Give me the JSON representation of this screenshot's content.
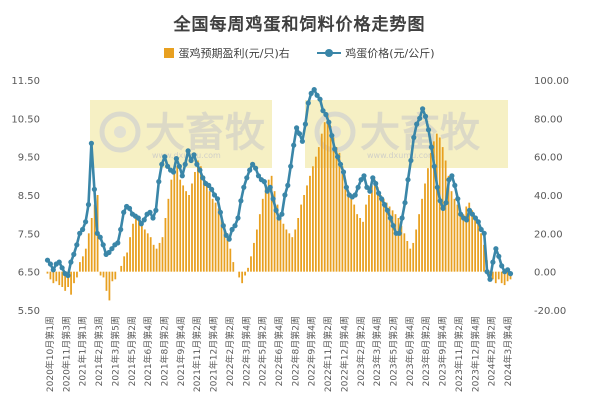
{
  "colors": {
    "bar": "#E8A020",
    "line": "#3A86A8",
    "lineDark": "#2E6D8E",
    "watermark_bg": "#F6F0C4"
  },
  "watermark": {
    "text": "大畜牧",
    "url": "www.dxumu.com"
  },
  "chart_data": {
    "type": "bar+line",
    "title": "全国每周鸡蛋和饲料价格走势图",
    "legend_position": "top",
    "grid": false,
    "y_left": {
      "label": "",
      "ticks": [
        "11.50",
        "10.50",
        "9.50",
        "8.50",
        "7.50",
        "6.50",
        "5.50"
      ],
      "range": [
        5.5,
        11.5
      ]
    },
    "y_right": {
      "label": "",
      "ticks": [
        "100.00",
        "80.00",
        "60.00",
        "40.00",
        "20.00",
        "0.00",
        "-20.00"
      ],
      "range": [
        -20,
        100
      ]
    },
    "x_tick_labels": [
      "2020年10月第1周",
      "2020年11月第3周",
      "2021年1月第1周",
      "2021年2月第3周",
      "2021年3月第5周",
      "2021年5月第2周",
      "2021年6月第4周",
      "2021年8月第2周",
      "2021年9月第4周",
      "2021年11月第2周",
      "2021年12月第4周",
      "2022年2月第2周",
      "2022年3月第4周",
      "2022年5月第2周",
      "2022年6月第4周",
      "2022年8月第2周",
      "2022年9月第4周",
      "2022年11月第2周",
      "2022年12月第4周",
      "2023年2月第2周",
      "2023年3月第4周",
      "2023年5月第2周",
      "2023年6月第4周",
      "2023年8月第2周",
      "2023年9月第4周",
      "2023年11月第2周",
      "2023年12月第4周",
      "2024年2月第2周",
      "2024年3月第4周"
    ],
    "series": [
      {
        "name": "蛋鸡预期盈利(元/只)右",
        "type": "bar",
        "axis": "right",
        "values": [
          -1,
          -4,
          -6,
          -5,
          -7,
          -8,
          -10,
          -8,
          -12,
          -6,
          -3,
          5,
          8,
          12,
          20,
          28,
          35,
          40,
          -2,
          -3,
          -10,
          -15,
          -5,
          -4,
          0,
          3,
          8,
          10,
          18,
          25,
          28,
          29,
          25,
          22,
          20,
          18,
          14,
          12,
          15,
          18,
          28,
          38,
          48,
          52,
          55,
          48,
          45,
          42,
          40,
          46,
          52,
          58,
          55,
          50,
          45,
          42,
          38,
          36,
          33,
          28,
          25,
          20,
          12,
          5,
          0,
          -3,
          -6,
          -2,
          2,
          8,
          15,
          22,
          30,
          38,
          45,
          48,
          50,
          42,
          35,
          30,
          25,
          22,
          20,
          18,
          22,
          28,
          35,
          40,
          45,
          50,
          55,
          60,
          65,
          72,
          78,
          82,
          76,
          70,
          65,
          62,
          55,
          48,
          42,
          38,
          35,
          30,
          28,
          26,
          35,
          40,
          45,
          48,
          44,
          40,
          38,
          36,
          34,
          32,
          30,
          28,
          24,
          20,
          16,
          12,
          15,
          22,
          30,
          38,
          46,
          54,
          62,
          68,
          72,
          70,
          65,
          58,
          50,
          42,
          38,
          35,
          32,
          30,
          34,
          36,
          32,
          28,
          25,
          20,
          14,
          6,
          -2,
          -4,
          -6,
          -4,
          -6,
          -7,
          -5,
          -4
        ],
        "note": "bar values in right-axis units (元/只)"
      },
      {
        "name": "鸡蛋价格(元/公斤)",
        "type": "line",
        "axis": "right",
        "values": [
          6,
          4,
          1,
          4,
          5,
          2,
          -1,
          -2,
          5,
          9,
          14,
          20,
          22,
          26,
          35,
          67,
          43,
          20,
          18,
          14,
          9,
          10,
          12,
          14,
          15,
          22,
          31,
          34,
          33,
          30,
          29,
          28,
          25,
          27,
          30,
          31,
          28,
          32,
          47,
          56,
          60,
          55,
          53,
          52,
          59,
          55,
          50,
          56,
          63,
          58,
          61,
          56,
          53,
          49,
          46,
          45,
          43,
          40,
          38,
          31,
          24,
          19,
          17,
          22,
          24,
          28,
          37,
          44,
          49,
          53,
          56,
          54,
          50,
          48,
          47,
          42,
          44,
          38,
          32,
          28,
          30,
          40,
          45,
          55,
          66,
          75,
          72,
          68,
          77,
          88,
          93,
          95,
          92,
          90,
          84,
          82,
          78,
          71,
          64,
          60,
          56,
          52,
          44,
          40,
          39,
          40,
          44,
          48,
          50,
          44,
          42,
          49,
          46,
          41,
          38,
          35,
          32,
          28,
          24,
          20,
          20,
          28,
          36,
          48,
          58,
          70,
          77,
          80,
          85,
          81,
          74,
          65,
          55,
          44,
          37,
          33,
          36,
          48,
          50,
          45,
          38,
          30,
          28,
          27,
          32,
          30,
          28,
          26,
          22,
          20,
          0,
          -4,
          5,
          12,
          8,
          3,
          0,
          1,
          -1
        ]
      }
    ]
  }
}
